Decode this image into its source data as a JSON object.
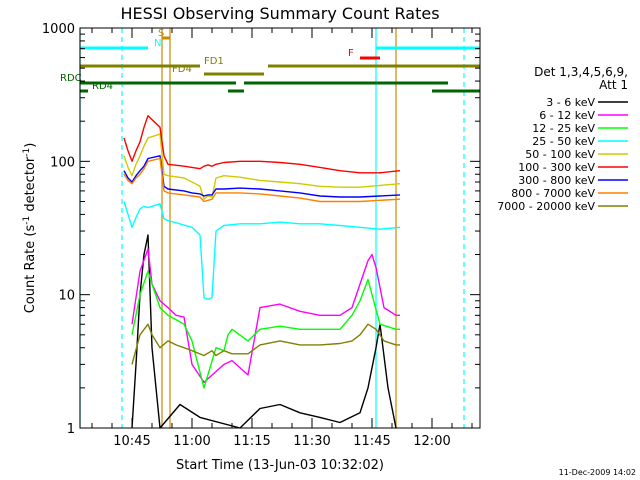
{
  "chart_data": {
    "type": "line",
    "title": "HESSI Observing Summary Count Rates",
    "xlabel": "Start Time (13-Jun-03 10:32:02)",
    "ylabel_main": "Count Rate (s",
    "ylabel_exp1": "-1",
    "ylabel_mid": " detector",
    "ylabel_exp2": "-1",
    "ylabel_end": ")",
    "y_scale": "log",
    "ylim": [
      1,
      1000
    ],
    "xlim_minutes": [
      0,
      100
    ],
    "x_ticks": [
      {
        "t": 13,
        "label": "10:45"
      },
      {
        "t": 28,
        "label": "11:00"
      },
      {
        "t": 43,
        "label": "11:15"
      },
      {
        "t": 58,
        "label": "11:30"
      },
      {
        "t": 73,
        "label": "11:45"
      },
      {
        "t": 88,
        "label": "12:00"
      }
    ],
    "y_ticks": [
      {
        "v": 1,
        "label": "1"
      },
      {
        "v": 10,
        "label": "10"
      },
      {
        "v": 100,
        "label": "100"
      },
      {
        "v": 1000,
        "label": "1000"
      }
    ],
    "legend_title": [
      "Det 1,3,4,5,6,9,",
      "Att 1"
    ],
    "legend_position": "right",
    "timestamp": "11-Dec-2009 14:02",
    "series": [
      {
        "name": "3 - 6 keV",
        "color": "#000000",
        "points": [
          [
            13,
            1
          ],
          [
            14,
            3
          ],
          [
            15,
            10
          ],
          [
            16,
            20
          ],
          [
            17,
            28
          ],
          [
            18,
            4
          ],
          [
            20,
            1
          ],
          [
            25,
            1.5
          ],
          [
            30,
            1.2
          ],
          [
            40,
            1
          ],
          [
            45,
            1.4
          ],
          [
            50,
            1.5
          ],
          [
            55,
            1.3
          ],
          [
            60,
            1.2
          ],
          [
            65,
            1.1
          ],
          [
            70,
            1.3
          ],
          [
            72,
            2
          ],
          [
            74,
            4
          ],
          [
            75,
            6
          ],
          [
            77,
            2
          ],
          [
            79,
            1
          ]
        ]
      },
      {
        "name": "6 - 12 keV",
        "color": "#ff00ff",
        "points": [
          [
            13,
            6
          ],
          [
            15,
            15
          ],
          [
            17,
            22
          ],
          [
            18,
            12
          ],
          [
            20,
            9
          ],
          [
            22,
            8
          ],
          [
            24,
            7
          ],
          [
            26,
            6.8
          ],
          [
            28,
            3
          ],
          [
            31,
            2.2
          ],
          [
            36,
            3
          ],
          [
            38,
            3.2
          ],
          [
            42,
            2.5
          ],
          [
            45,
            8
          ],
          [
            50,
            8.5
          ],
          [
            55,
            7.5
          ],
          [
            60,
            7
          ],
          [
            65,
            7
          ],
          [
            68,
            8
          ],
          [
            70,
            12
          ],
          [
            72,
            18
          ],
          [
            73,
            20
          ],
          [
            74,
            16
          ],
          [
            76,
            8
          ],
          [
            79,
            7
          ],
          [
            80,
            7
          ]
        ]
      },
      {
        "name": "12 - 25 keV",
        "color": "#00ff00",
        "points": [
          [
            13,
            5
          ],
          [
            15,
            10
          ],
          [
            17,
            15
          ],
          [
            18,
            12
          ],
          [
            20,
            8
          ],
          [
            22,
            7
          ],
          [
            24,
            6.5
          ],
          [
            26,
            6
          ],
          [
            28,
            4.5
          ],
          [
            31,
            2
          ],
          [
            34,
            4
          ],
          [
            36,
            3.8
          ],
          [
            37,
            5
          ],
          [
            38,
            5.5
          ],
          [
            42,
            4.5
          ],
          [
            45,
            5.5
          ],
          [
            50,
            5.8
          ],
          [
            55,
            5.5
          ],
          [
            60,
            5.5
          ],
          [
            65,
            5.5
          ],
          [
            68,
            7
          ],
          [
            70,
            9
          ],
          [
            72,
            13
          ],
          [
            73,
            10
          ],
          [
            75,
            6
          ],
          [
            79,
            5.5
          ],
          [
            80,
            5.5
          ]
        ]
      },
      {
        "name": "25 - 50 keV",
        "color": "#00ffff",
        "points": [
          [
            11,
            50
          ],
          [
            12,
            40
          ],
          [
            13,
            32
          ],
          [
            14,
            38
          ],
          [
            15,
            44
          ],
          [
            16,
            46
          ],
          [
            17,
            45
          ],
          [
            20,
            48
          ],
          [
            21,
            37
          ],
          [
            22,
            36
          ],
          [
            28,
            32
          ],
          [
            30,
            28
          ],
          [
            31,
            9.5
          ],
          [
            32,
            9.2
          ],
          [
            33,
            9.5
          ],
          [
            34,
            30
          ],
          [
            36,
            33
          ],
          [
            40,
            34
          ],
          [
            45,
            34
          ],
          [
            50,
            35
          ],
          [
            55,
            34
          ],
          [
            60,
            34
          ],
          [
            65,
            33
          ],
          [
            70,
            32
          ],
          [
            75,
            31
          ],
          [
            80,
            32
          ]
        ]
      },
      {
        "name": "50 - 100 keV",
        "color": "#cccc00",
        "points": [
          [
            11,
            110
          ],
          [
            12,
            90
          ],
          [
            13,
            78
          ],
          [
            14,
            95
          ],
          [
            15,
            110
          ],
          [
            16,
            130
          ],
          [
            17,
            150
          ],
          [
            20,
            160
          ],
          [
            21,
            80
          ],
          [
            22,
            78
          ],
          [
            26,
            75
          ],
          [
            28,
            70
          ],
          [
            30,
            65
          ],
          [
            31,
            52
          ],
          [
            32,
            55
          ],
          [
            33,
            54
          ],
          [
            34,
            75
          ],
          [
            36,
            78
          ],
          [
            40,
            76
          ],
          [
            45,
            72
          ],
          [
            50,
            70
          ],
          [
            55,
            68
          ],
          [
            60,
            65
          ],
          [
            65,
            64
          ],
          [
            70,
            64
          ],
          [
            75,
            66
          ],
          [
            80,
            68
          ]
        ]
      },
      {
        "name": "100 - 300 keV",
        "color": "#ff0000",
        "points": [
          [
            11,
            150
          ],
          [
            12,
            120
          ],
          [
            13,
            100
          ],
          [
            14,
            120
          ],
          [
            15,
            140
          ],
          [
            16,
            180
          ],
          [
            17,
            220
          ],
          [
            20,
            180
          ],
          [
            21,
            110
          ],
          [
            22,
            95
          ],
          [
            26,
            92
          ],
          [
            28,
            90
          ],
          [
            30,
            88
          ],
          [
            31,
            92
          ],
          [
            32,
            94
          ],
          [
            33,
            92
          ],
          [
            34,
            95
          ],
          [
            36,
            98
          ],
          [
            40,
            100
          ],
          [
            45,
            100
          ],
          [
            50,
            98
          ],
          [
            55,
            95
          ],
          [
            60,
            90
          ],
          [
            65,
            85
          ],
          [
            70,
            82
          ],
          [
            75,
            82
          ],
          [
            80,
            85
          ]
        ]
      },
      {
        "name": "300 - 800 keV",
        "color": "#0000ff",
        "points": [
          [
            11,
            85
          ],
          [
            12,
            75
          ],
          [
            13,
            70
          ],
          [
            14,
            78
          ],
          [
            15,
            85
          ],
          [
            16,
            92
          ],
          [
            17,
            105
          ],
          [
            20,
            110
          ],
          [
            21,
            65
          ],
          [
            22,
            62
          ],
          [
            26,
            60
          ],
          [
            28,
            58
          ],
          [
            30,
            57
          ],
          [
            31,
            55
          ],
          [
            32,
            56
          ],
          [
            33,
            56
          ],
          [
            34,
            62
          ],
          [
            36,
            62
          ],
          [
            40,
            63
          ],
          [
            45,
            62
          ],
          [
            50,
            60
          ],
          [
            55,
            58
          ],
          [
            60,
            55
          ],
          [
            65,
            54
          ],
          [
            70,
            54
          ],
          [
            75,
            55
          ],
          [
            80,
            56
          ]
        ]
      },
      {
        "name": "800 - 7000 keV",
        "color": "#ff8000",
        "points": [
          [
            11,
            80
          ],
          [
            12,
            72
          ],
          [
            13,
            68
          ],
          [
            14,
            75
          ],
          [
            15,
            80
          ],
          [
            16,
            88
          ],
          [
            17,
            100
          ],
          [
            20,
            105
          ],
          [
            21,
            60
          ],
          [
            22,
            58
          ],
          [
            26,
            56
          ],
          [
            28,
            55
          ],
          [
            30,
            54
          ],
          [
            31,
            50
          ],
          [
            32,
            51
          ],
          [
            33,
            52
          ],
          [
            34,
            58
          ],
          [
            36,
            58
          ],
          [
            40,
            58
          ],
          [
            45,
            57
          ],
          [
            50,
            55
          ],
          [
            55,
            53
          ],
          [
            60,
            50
          ],
          [
            65,
            50
          ],
          [
            70,
            50
          ],
          [
            75,
            51
          ],
          [
            80,
            52
          ]
        ]
      },
      {
        "name": "7000 - 20000 keV",
        "color": "#808000",
        "points": [
          [
            13,
            3
          ],
          [
            15,
            5
          ],
          [
            17,
            6
          ],
          [
            18,
            5
          ],
          [
            20,
            4
          ],
          [
            22,
            4.5
          ],
          [
            24,
            4.2
          ],
          [
            26,
            4
          ],
          [
            28,
            3.8
          ],
          [
            31,
            3.5
          ],
          [
            33,
            3.8
          ],
          [
            34,
            3.5
          ],
          [
            36,
            3.8
          ],
          [
            38,
            3.6
          ],
          [
            42,
            3.6
          ],
          [
            45,
            4.2
          ],
          [
            50,
            4.5
          ],
          [
            55,
            4.2
          ],
          [
            60,
            4.2
          ],
          [
            65,
            4.3
          ],
          [
            68,
            4.5
          ],
          [
            70,
            5
          ],
          [
            72,
            6
          ],
          [
            74,
            5.5
          ],
          [
            76,
            4.5
          ],
          [
            79,
            4.2
          ],
          [
            80,
            4.2
          ]
        ]
      }
    ],
    "vertical_markers": [
      {
        "t": 0,
        "color": "#00ffff",
        "style": "solid"
      },
      {
        "t": 10.5,
        "color": "#00ffff",
        "style": "dashed"
      },
      {
        "t": 20.5,
        "color": "#cc8800",
        "style": "solid"
      },
      {
        "t": 22.5,
        "color": "#cc8800",
        "style": "solid"
      },
      {
        "t": 74,
        "color": "#00ffff",
        "style": "solid"
      },
      {
        "t": 79,
        "color": "#cc8800",
        "style": "solid"
      },
      {
        "t": 96,
        "color": "#00ffff",
        "style": "dashed"
      }
    ],
    "flag_bars": [
      {
        "label": "S",
        "label_color": "#cc8800",
        "y": 38,
        "color": "#cc8800",
        "segments": [
          [
            20.5,
            22.5
          ]
        ],
        "label_at": 19.5
      },
      {
        "label": "N",
        "label_color": "#00ffff",
        "y": 48,
        "color": "#00ffff",
        "segments": [
          [
            0,
            17
          ],
          [
            74,
            100
          ]
        ],
        "label_at": 18.5
      },
      {
        "label": "F",
        "label_color": "#ff0000",
        "y": 58,
        "color": "#ff0000",
        "segments": [
          [
            70,
            75
          ]
        ],
        "label_at": 67
      },
      {
        "label": "FD1",
        "label_color": "#808000",
        "y": 66,
        "color": "#808000",
        "segments": [
          [
            0,
            30
          ],
          [
            47,
            100
          ]
        ],
        "label_at": 31
      },
      {
        "label": "FD4",
        "label_color": "#808000",
        "y": 74,
        "color": "#808000",
        "segments": [
          [
            31,
            46
          ]
        ],
        "label_at": 23
      },
      {
        "label": "RDC",
        "label_color": "#006400",
        "y": 83,
        "color": "#006400",
        "segments": [
          [
            0,
            39
          ],
          [
            41,
            92
          ]
        ],
        "label_at": -5
      },
      {
        "label": "RD4",
        "label_color": "#006400",
        "y": 91,
        "color": "#006400",
        "segments": [
          [
            0,
            2
          ],
          [
            37,
            41
          ],
          [
            88,
            100
          ]
        ],
        "label_at": 3
      }
    ]
  }
}
